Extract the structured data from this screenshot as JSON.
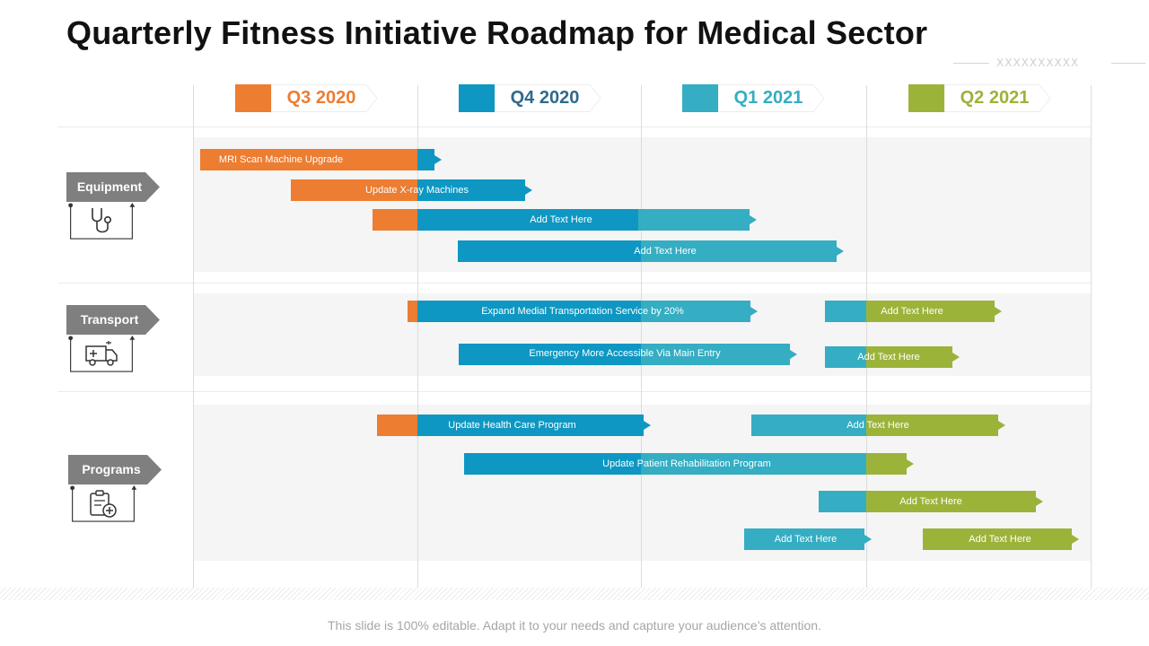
{
  "title": "Quarterly Fitness Initiative Roadmap for Medical Sector",
  "decoration": {
    "text": "XXXXXXXXXX"
  },
  "colors": {
    "orange": "#ed7d31",
    "blue": "#0e97c2",
    "teal": "#35adc2",
    "green": "#9cb33a",
    "tag": "#7f7f7f"
  },
  "quarters": [
    {
      "label": "Q3 2020",
      "color": "#ed7d31"
    },
    {
      "label": "Q4 2020",
      "color": "#0e97c2"
    },
    {
      "label": "Q1 2021",
      "color": "#35adc2"
    },
    {
      "label": "Q2 2021",
      "color": "#9cb33a"
    }
  ],
  "categories": [
    {
      "label": "Equipment",
      "icon": "stethoscope-icon"
    },
    {
      "label": "Transport",
      "icon": "ambulance-icon"
    },
    {
      "label": "Programs",
      "icon": "clipboard-plus-icon"
    }
  ],
  "tasks": [
    {
      "label": "MRI Scan Machine Upgrade"
    },
    {
      "label": "Update X-ray Machines"
    },
    {
      "label": "Add Text Here"
    },
    {
      "label": "Add Text Here"
    },
    {
      "label": "Expand Medial Transportation Service by 20%"
    },
    {
      "label": "Add Text Here"
    },
    {
      "label": "Emergency More Accessible Via Main Entry"
    },
    {
      "label": "Add Text Here"
    },
    {
      "label": "Update Health Care Program"
    },
    {
      "label": "Add Text Here"
    },
    {
      "label": "Update Patient Rehabilitation Program"
    },
    {
      "label": "Add Text Here"
    },
    {
      "label": "Add Text Here"
    },
    {
      "label": "Add Text Here"
    }
  ],
  "footer": "This slide is 100% editable. Adapt it to your needs and capture your audience’s attention."
}
